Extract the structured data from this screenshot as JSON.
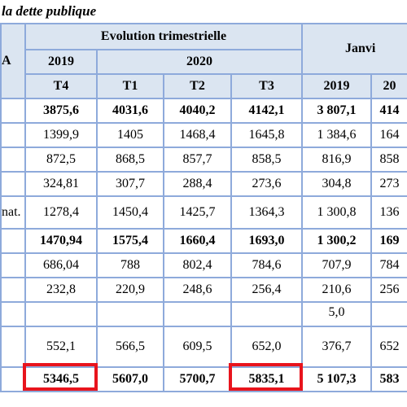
{
  "header": {
    "title": "la dette publique"
  },
  "table": {
    "stub_header": "A",
    "group_headers": [
      "Evolution trimestrielle",
      "Janvi"
    ],
    "year_headers": [
      "2019",
      "2020"
    ],
    "column_headers": [
      "T4",
      "T1",
      "T2",
      "T3",
      "2019",
      "20"
    ],
    "rows": [
      {
        "label": null,
        "bold": true,
        "cells": [
          "3875,6",
          "4031,6",
          "4040,2",
          "4142,1",
          "3 807,1",
          "414"
        ]
      },
      {
        "label": null,
        "bold": false,
        "cells": [
          "1399,9",
          "1405",
          "1468,4",
          "1645,8",
          "1 384,6",
          "164"
        ]
      },
      {
        "label": null,
        "bold": false,
        "cells": [
          "872,5",
          "868,5",
          "857,7",
          "858,5",
          "816,9",
          "858"
        ]
      },
      {
        "label": null,
        "bold": false,
        "cells": [
          "324,81",
          "307,7",
          "288,4",
          "273,6",
          "304,8",
          "273"
        ]
      },
      {
        "label": "nat.",
        "bold": false,
        "cells": [
          "1278,4",
          "1450,4",
          "1425,7",
          "1364,3",
          "1 300,8",
          "136"
        ]
      },
      {
        "label": null,
        "bold": true,
        "cells": [
          "1470,94",
          "1575,4",
          "1660,4",
          "1693,0",
          "1 300,2",
          "169"
        ]
      },
      {
        "label": null,
        "bold": false,
        "cells": [
          "686,04",
          "788",
          "802,4",
          "784,6",
          "707,9",
          "784"
        ]
      },
      {
        "label": null,
        "bold": false,
        "cells": [
          "232,8",
          "220,9",
          "248,6",
          "256,4",
          "210,6",
          "256"
        ]
      },
      {
        "label": null,
        "bold": false,
        "cells": [
          null,
          null,
          null,
          null,
          "5,0",
          null
        ]
      },
      {
        "label": null,
        "bold": false,
        "cells": [
          "552,1",
          "566,5",
          "609,5",
          "652,0",
          "376,7",
          "652"
        ]
      },
      {
        "label": null,
        "bold": true,
        "cells": [
          "5346,5",
          "5607,0",
          "5700,7",
          "5835,1",
          "5 107,3",
          "583"
        ]
      }
    ]
  }
}
